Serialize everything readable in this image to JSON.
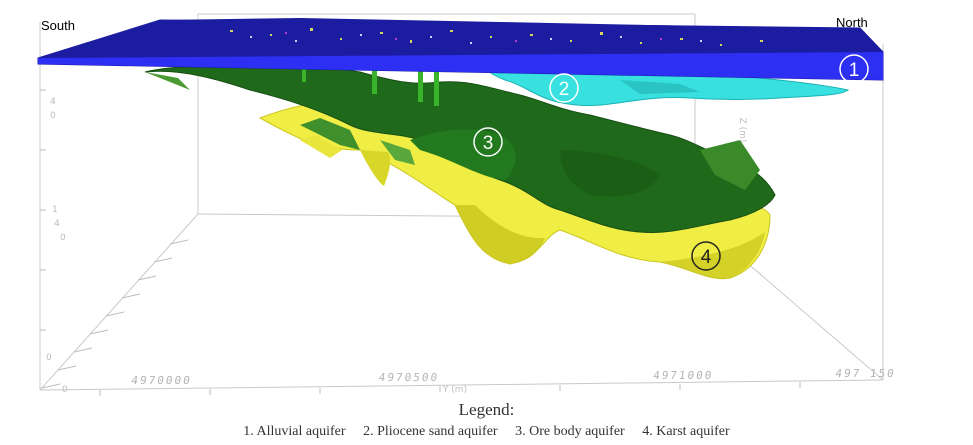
{
  "labels": {
    "south": "South",
    "north": "North"
  },
  "axes": {
    "y_axis_label": "Y (m)",
    "y_ticks": [
      "4970000",
      "4970500",
      "4971000",
      "497 150"
    ],
    "z_axis_label": "Z (m)",
    "x_ticks": [
      "4",
      "0",
      "1",
      "4",
      "0",
      "0",
      "0"
    ]
  },
  "markers": [
    {
      "number": "1",
      "layer": "alluvial"
    },
    {
      "number": "2",
      "layer": "pliocene"
    },
    {
      "number": "3",
      "layer": "ore"
    },
    {
      "number": "4",
      "layer": "karst"
    }
  ],
  "legend": {
    "title": "Legend:",
    "items": [
      "1. Alluvial aquifer",
      "2. Pliocene sand aquifer",
      "3. Ore body aquifer",
      "4. Karst aquifer"
    ]
  },
  "colors": {
    "alluvial": "#2a2ce6",
    "alluvial_dark": "#16169a",
    "pliocene": "#33dede",
    "ore": "#1f6e1b",
    "ore_light": "#4a9a2f",
    "karst": "#f2f046",
    "karst_dark": "#b7b716",
    "box_line": "#c8c8c8"
  }
}
